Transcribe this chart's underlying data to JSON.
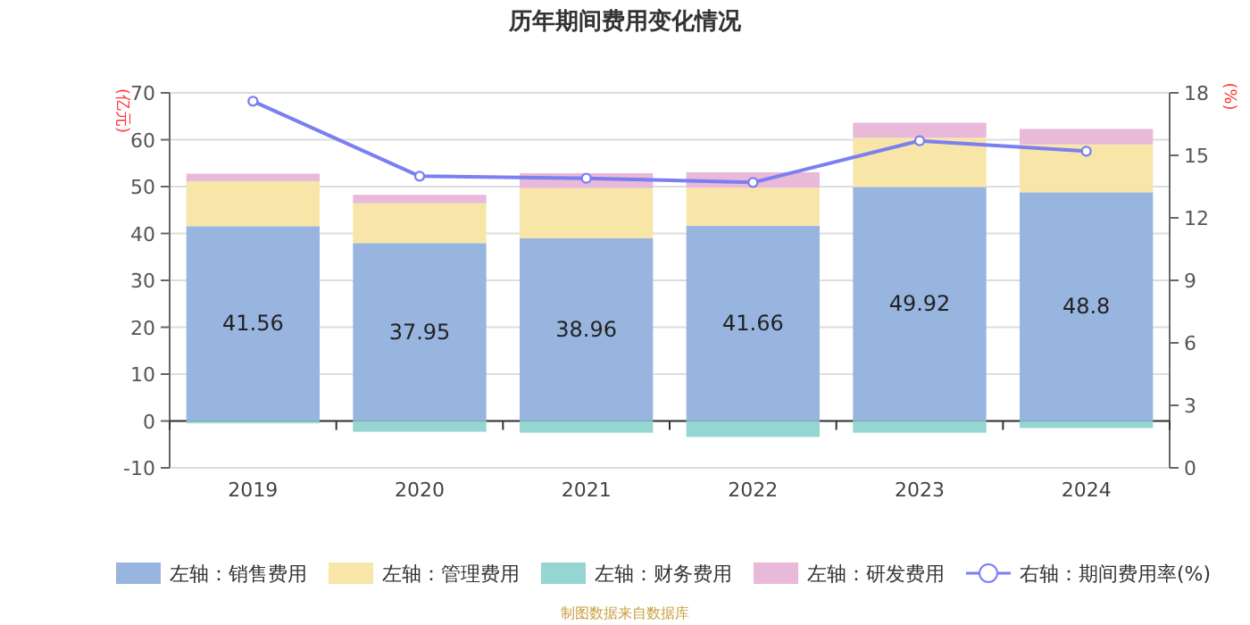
{
  "chart_data": {
    "type": "bar",
    "title": "历年期间费用变化情况",
    "ylabel": "(亿元)",
    "y2label": "(%)",
    "categories": [
      "2019",
      "2020",
      "2021",
      "2022",
      "2023",
      "2024"
    ],
    "stacked": true,
    "series": [
      {
        "name": "左轴：销售费用",
        "color": "#98b5e0",
        "values": [
          41.56,
          37.95,
          38.96,
          41.66,
          49.92,
          48.8
        ],
        "value_labels": [
          "41.56",
          "37.95",
          "38.96",
          "41.66",
          "49.92",
          "48.8"
        ]
      },
      {
        "name": "左轴：管理费用",
        "color": "#f8e6a8",
        "values": [
          9.6,
          8.5,
          10.7,
          8.1,
          10.5,
          10.2
        ]
      },
      {
        "name": "左轴：财务费用",
        "color": "#95d5d2",
        "values": [
          -0.5,
          -2.3,
          -2.5,
          -3.4,
          -2.5,
          -1.5
        ]
      },
      {
        "name": "左轴：研发费用",
        "color": "#e8b9d8",
        "values": [
          1.6,
          1.8,
          3.2,
          3.3,
          3.2,
          3.3
        ]
      },
      {
        "name": "右轴：期间费用率(%)",
        "type": "line",
        "axis": "y2",
        "color": "#7b7ff0",
        "marker": "circle",
        "values": [
          17.6,
          14.0,
          13.9,
          13.7,
          15.7,
          15.2
        ]
      }
    ],
    "ylim": [
      -10,
      70
    ],
    "yticks": [
      -10,
      0,
      10,
      20,
      30,
      40,
      50,
      60,
      70
    ],
    "y2lim": [
      0,
      18
    ],
    "y2ticks": [
      0,
      3,
      6,
      9,
      12,
      15,
      18
    ],
    "grid": "y",
    "legend": "bottom",
    "annotations": [
      "制图数据来自数据库"
    ]
  }
}
